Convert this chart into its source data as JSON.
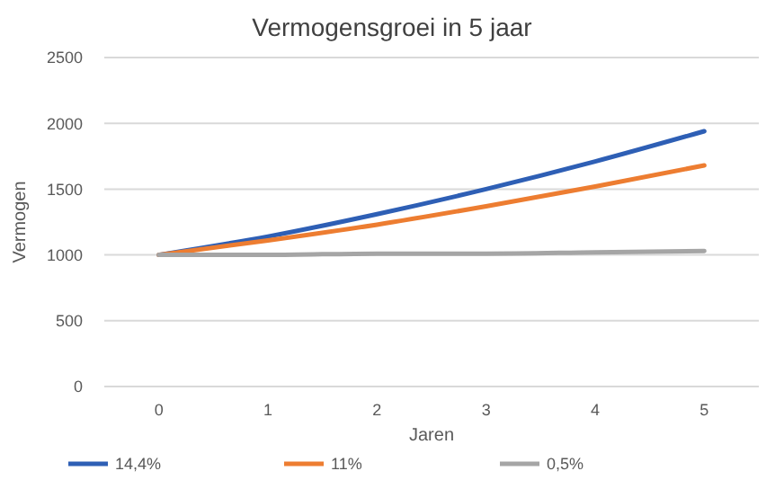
{
  "chart_data": {
    "type": "line",
    "title": "Vermogensgroei in 5 jaar",
    "xlabel": "Jaren",
    "ylabel": "Vermogen",
    "categories": [
      "0",
      "1",
      "2",
      "3",
      "4",
      "5"
    ],
    "series": [
      {
        "name": "14,4%",
        "color": "#2e5fb5",
        "values": [
          1000,
          1140,
          1310,
          1500,
          1710,
          1940
        ]
      },
      {
        "name": "11%",
        "color": "#ed7d31",
        "values": [
          1000,
          1110,
          1230,
          1370,
          1520,
          1680
        ]
      },
      {
        "name": "0,5%",
        "color": "#a5a5a5",
        "values": [
          1000,
          1000,
          1010,
          1010,
          1020,
          1030
        ]
      }
    ],
    "ylim": [
      0,
      2500
    ],
    "yticks": [
      0,
      500,
      1000,
      1500,
      2000,
      2500
    ],
    "grid": "y",
    "legend": "bottom",
    "marker": "none",
    "line_style": "solid"
  }
}
